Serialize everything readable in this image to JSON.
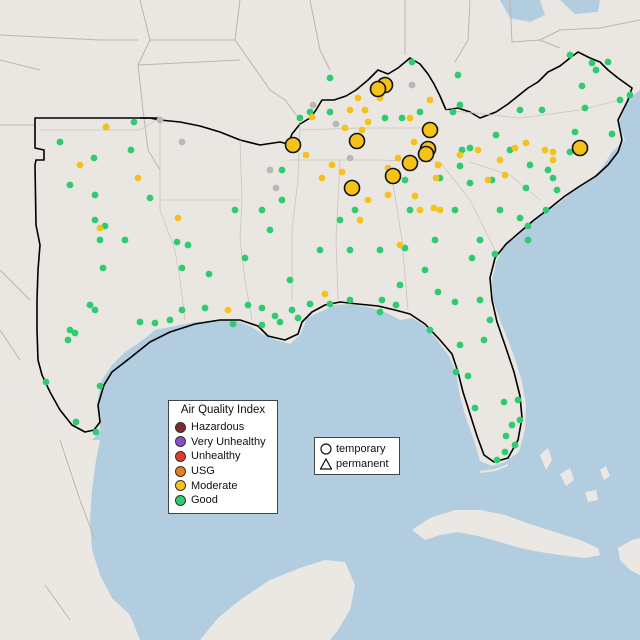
{
  "legend": {
    "title": "Air Quality Index",
    "categories": [
      {
        "label": "Hazardous",
        "color": "#7e2a2a"
      },
      {
        "label": "Very Unhealthy",
        "color": "#8a4fbf"
      },
      {
        "label": "Unhealthy",
        "color": "#e0392b"
      },
      {
        "label": "USG",
        "color": "#e67e22"
      },
      {
        "label": "Moderate",
        "color": "#f5c21a"
      },
      {
        "label": "Good",
        "color": "#2ecc71"
      }
    ],
    "monitor_types": [
      {
        "label": "temporary",
        "symbol": "circle"
      },
      {
        "label": "permanent",
        "symbol": "triangle"
      }
    ]
  },
  "colors": {
    "ocean": "#b3cde0",
    "land": "#eae6e1",
    "state_border": "#b9b5b0",
    "region_outline": "#000000",
    "no_data_station": "#b8b8b8"
  }
}
